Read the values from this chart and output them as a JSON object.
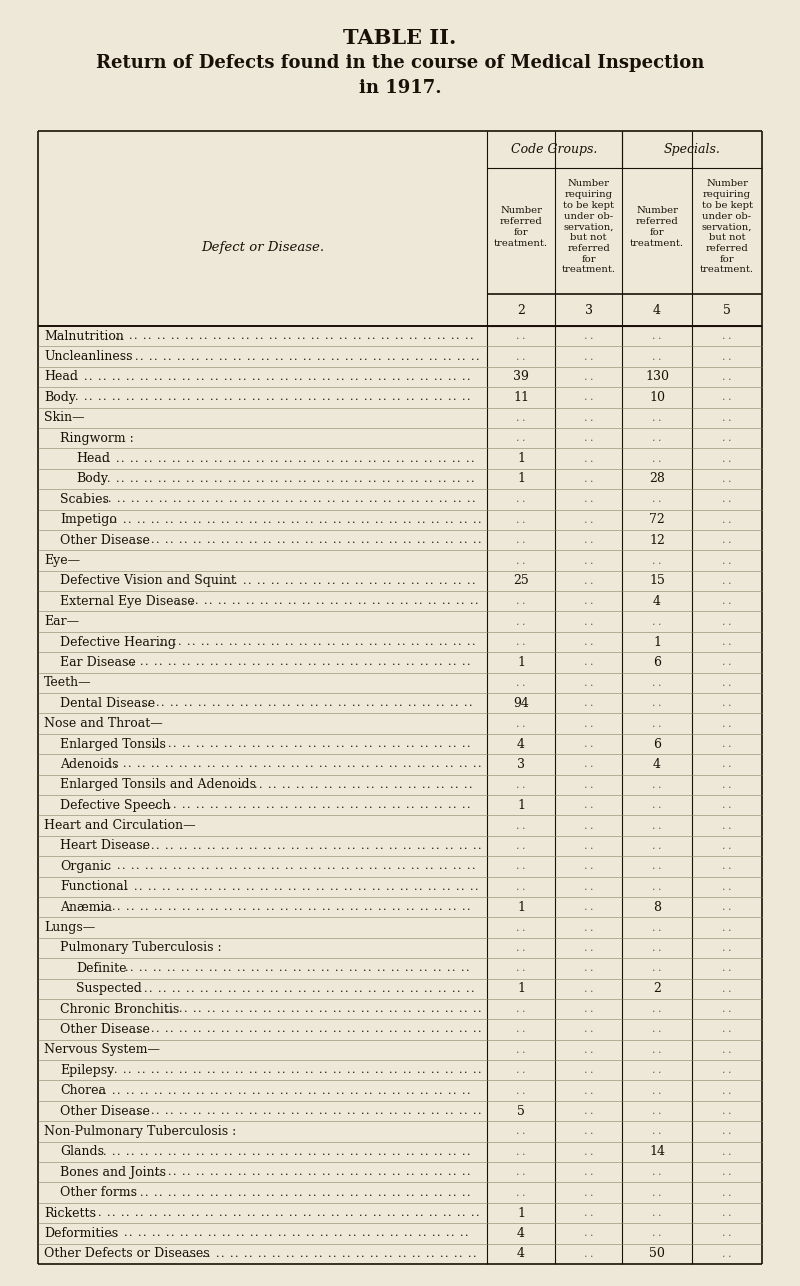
{
  "title1": "TABLE II.",
  "title2": "Return of Defects found in the course of Medical Inspection\nin 1917.",
  "bg_color": "#ede8d8",
  "text_color": "#1a1008",
  "col_header_1": "Code Groups.",
  "col_header_2": "Specials.",
  "defect_label": "Defect or Disease.",
  "col1_header": "Number\nreferred\nfor\ntreatment.",
  "col2_header": "Number\nrequiring\nto be kept\nunder ob-\nservation,\nbut not\nreferred\nfor\ntreatment.",
  "col_nums": [
    "2",
    "3",
    "4",
    "5"
  ],
  "rows": [
    {
      "label": "Malnutrition",
      "indent": 0,
      "dots": true,
      "section": false,
      "c2": "",
      "c3": "",
      "c4": "",
      "c5": ""
    },
    {
      "label": "Uncleanliness",
      "indent": 0,
      "dots": true,
      "section": false,
      "c2": "",
      "c3": "",
      "c4": "",
      "c5": ""
    },
    {
      "label": "Head",
      "indent": 0,
      "dots": true,
      "section": false,
      "c2": "39",
      "c3": "",
      "c4": "130",
      "c5": ""
    },
    {
      "label": "Body",
      "indent": 0,
      "dots": true,
      "section": false,
      "c2": "11",
      "c3": "",
      "c4": "10",
      "c5": ""
    },
    {
      "label": "Skin—",
      "indent": 0,
      "dots": false,
      "section": true,
      "c2": "",
      "c3": "",
      "c4": "",
      "c5": ""
    },
    {
      "label": "Ringworm :",
      "indent": 1,
      "dots": false,
      "section": false,
      "c2": "",
      "c3": "",
      "c4": "",
      "c5": ""
    },
    {
      "label": "Head",
      "indent": 2,
      "dots": true,
      "section": false,
      "c2": "1",
      "c3": "",
      "c4": "",
      "c5": ""
    },
    {
      "label": "Body",
      "indent": 2,
      "dots": true,
      "section": false,
      "c2": "1",
      "c3": "",
      "c4": "28",
      "c5": ""
    },
    {
      "label": "Scabies",
      "indent": 1,
      "dots": true,
      "section": false,
      "c2": "",
      "c3": "",
      "c4": "",
      "c5": ""
    },
    {
      "label": "Impetigo",
      "indent": 1,
      "dots": true,
      "section": false,
      "c2": "",
      "c3": "",
      "c4": "72",
      "c5": ""
    },
    {
      "label": "Other Disease",
      "indent": 1,
      "dots": true,
      "section": false,
      "c2": "",
      "c3": "",
      "c4": "12",
      "c5": ""
    },
    {
      "label": "Eye—",
      "indent": 0,
      "dots": false,
      "section": true,
      "c2": "",
      "c3": "",
      "c4": "",
      "c5": ""
    },
    {
      "label": "Defective Vision and Squint",
      "indent": 1,
      "dots": true,
      "section": false,
      "c2": "25",
      "c3": "",
      "c4": "15",
      "c5": ""
    },
    {
      "label": "External Eye Disease",
      "indent": 1,
      "dots": true,
      "section": false,
      "c2": "",
      "c3": "",
      "c4": "4",
      "c5": ""
    },
    {
      "label": "Ear—",
      "indent": 0,
      "dots": false,
      "section": true,
      "c2": "",
      "c3": "",
      "c4": "",
      "c5": ""
    },
    {
      "label": "Defective Hearing",
      "indent": 1,
      "dots": true,
      "section": false,
      "c2": "",
      "c3": "",
      "c4": "1",
      "c5": ""
    },
    {
      "label": "Ear Disease",
      "indent": 1,
      "dots": true,
      "section": false,
      "c2": "1",
      "c3": "",
      "c4": "6",
      "c5": ""
    },
    {
      "label": "Teeth—",
      "indent": 0,
      "dots": false,
      "section": true,
      "c2": "",
      "c3": "",
      "c4": "",
      "c5": ""
    },
    {
      "label": "Dental Disease",
      "indent": 1,
      "dots": true,
      "section": false,
      "c2": "94",
      "c3": "",
      "c4": "",
      "c5": ""
    },
    {
      "label": "Nose and Throat—",
      "indent": 0,
      "dots": false,
      "section": true,
      "c2": "",
      "c3": "",
      "c4": "",
      "c5": ""
    },
    {
      "label": "Enlarged Tonsils",
      "indent": 1,
      "dots": true,
      "section": false,
      "c2": "4",
      "c3": "",
      "c4": "6",
      "c5": ""
    },
    {
      "label": "Adenoids",
      "indent": 1,
      "dots": true,
      "section": false,
      "c2": "3",
      "c3": "",
      "c4": "4",
      "c5": ""
    },
    {
      "label": "Enlarged Tonsils and Adenoids",
      "indent": 1,
      "dots": true,
      "section": false,
      "c2": "",
      "c3": "",
      "c4": "",
      "c5": ""
    },
    {
      "label": "Defective Speech",
      "indent": 1,
      "dots": true,
      "section": false,
      "c2": "1",
      "c3": "",
      "c4": "",
      "c5": ""
    },
    {
      "label": "Heart and Circulation—",
      "indent": 0,
      "dots": false,
      "section": true,
      "c2": "",
      "c3": "",
      "c4": "",
      "c5": ""
    },
    {
      "label": "Heart Disease",
      "indent": 1,
      "dots": true,
      "section": false,
      "c2": "",
      "c3": "",
      "c4": "",
      "c5": ""
    },
    {
      "label": "Organic",
      "indent": 1,
      "dots": true,
      "section": false,
      "c2": "",
      "c3": "",
      "c4": "",
      "c5": ""
    },
    {
      "label": "Functional",
      "indent": 1,
      "dots": true,
      "section": false,
      "c2": "",
      "c3": "",
      "c4": "",
      "c5": ""
    },
    {
      "label": "Anæmia",
      "indent": 1,
      "dots": true,
      "section": false,
      "c2": "1",
      "c3": "",
      "c4": "8",
      "c5": ""
    },
    {
      "label": "Lungs—",
      "indent": 0,
      "dots": false,
      "section": true,
      "c2": "",
      "c3": "",
      "c4": "",
      "c5": ""
    },
    {
      "label": "Pulmonary Tuberculosis :",
      "indent": 1,
      "dots": false,
      "section": false,
      "c2": "",
      "c3": "",
      "c4": "",
      "c5": ""
    },
    {
      "label": "Definite",
      "indent": 2,
      "dots": true,
      "section": false,
      "c2": "",
      "c3": "",
      "c4": "",
      "c5": ""
    },
    {
      "label": "Suspected",
      "indent": 2,
      "dots": true,
      "section": false,
      "c2": "1",
      "c3": "",
      "c4": "2",
      "c5": ""
    },
    {
      "label": "Chronic Bronchitis",
      "indent": 1,
      "dots": true,
      "section": false,
      "c2": "",
      "c3": "",
      "c4": "",
      "c5": ""
    },
    {
      "label": "Other Disease",
      "indent": 1,
      "dots": true,
      "section": false,
      "c2": "",
      "c3": "",
      "c4": "",
      "c5": ""
    },
    {
      "label": "Nervous System—",
      "indent": 0,
      "dots": false,
      "section": true,
      "c2": "",
      "c3": "",
      "c4": "",
      "c5": ""
    },
    {
      "label": "Epilepsy",
      "indent": 1,
      "dots": true,
      "section": false,
      "c2": "",
      "c3": "",
      "c4": "",
      "c5": ""
    },
    {
      "label": "Chorea",
      "indent": 1,
      "dots": true,
      "section": false,
      "c2": "",
      "c3": "",
      "c4": "",
      "c5": ""
    },
    {
      "label": "Other Disease",
      "indent": 1,
      "dots": true,
      "section": false,
      "c2": "5",
      "c3": "",
      "c4": "",
      "c5": ""
    },
    {
      "label": "Non-Pulmonary Tuberculosis :",
      "indent": 0,
      "dots": false,
      "section": false,
      "c2": "",
      "c3": "",
      "c4": "",
      "c5": ""
    },
    {
      "label": "Glands",
      "indent": 1,
      "dots": true,
      "section": false,
      "c2": "",
      "c3": "",
      "c4": "14",
      "c5": ""
    },
    {
      "label": "Bones and Joints",
      "indent": 1,
      "dots": true,
      "section": false,
      "c2": "",
      "c3": "",
      "c4": "",
      "c5": ""
    },
    {
      "label": "Other forms",
      "indent": 1,
      "dots": true,
      "section": false,
      "c2": "",
      "c3": "",
      "c4": "",
      "c5": ""
    },
    {
      "label": "Ricketts",
      "indent": 0,
      "dots": true,
      "section": false,
      "c2": "1",
      "c3": "",
      "c4": "",
      "c5": ""
    },
    {
      "label": "Deformities",
      "indent": 0,
      "dots": true,
      "section": false,
      "c2": "4",
      "c3": "",
      "c4": "",
      "c5": ""
    },
    {
      "label": "Other Defects or Diseases",
      "indent": 0,
      "dots": true,
      "section": false,
      "c2": "4",
      "c3": "",
      "c4": "50",
      "c5": ""
    }
  ]
}
